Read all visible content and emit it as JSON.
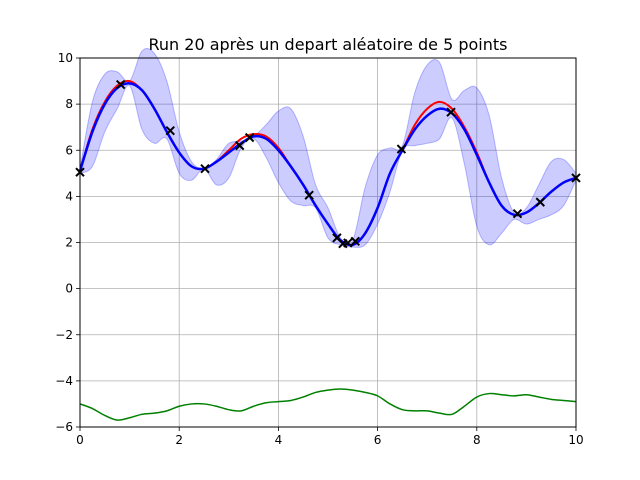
{
  "chart_data": {
    "type": "line",
    "title": "Run 20 après un depart aléatoire de 5 points",
    "xlabel": "",
    "ylabel": "",
    "xlim": [
      0,
      10
    ],
    "ylim": [
      -6,
      10
    ],
    "grid": true,
    "x_ticks": [
      0,
      2,
      4,
      6,
      8,
      10
    ],
    "y_ticks": [
      -6,
      -4,
      -2,
      0,
      2,
      4,
      6,
      8,
      10
    ],
    "x_tick_labels": [
      "0",
      "2",
      "4",
      "6",
      "8",
      "10"
    ],
    "y_tick_labels": [
      "−6",
      "−4",
      "−2",
      "0",
      "2",
      "4",
      "6",
      "8",
      "10"
    ],
    "x": [
      0,
      0.25,
      0.5,
      0.75,
      1.0,
      1.25,
      1.5,
      1.75,
      2.0,
      2.25,
      2.5,
      2.75,
      3.0,
      3.25,
      3.5,
      3.75,
      4.0,
      4.25,
      4.5,
      4.75,
      5.0,
      5.25,
      5.5,
      5.75,
      6.0,
      6.25,
      6.5,
      6.75,
      7.0,
      7.25,
      7.5,
      7.75,
      8.0,
      8.25,
      8.5,
      8.75,
      9.0,
      9.25,
      9.5,
      9.75,
      10.0
    ],
    "series": [
      {
        "role": "true-function",
        "color": "#ff0000",
        "values": [
          5.1,
          6.9,
          8.1,
          8.8,
          9.0,
          8.6,
          7.8,
          6.8,
          5.9,
          5.3,
          5.2,
          5.5,
          6.0,
          6.5,
          6.7,
          6.6,
          6.1,
          5.3,
          4.5,
          3.6,
          2.8,
          2.1,
          1.9,
          2.4,
          3.5,
          5.0,
          6.0,
          7.1,
          7.8,
          8.1,
          7.8,
          7.0,
          5.9,
          4.6,
          3.6,
          3.2,
          3.3,
          3.7,
          4.2,
          4.6,
          4.8
        ]
      },
      {
        "role": "gp-mean",
        "color": "#0000ff",
        "values": [
          5.1,
          6.8,
          8.0,
          8.7,
          8.9,
          8.6,
          7.8,
          6.8,
          5.9,
          5.3,
          5.2,
          5.5,
          5.9,
          6.3,
          6.6,
          6.5,
          6.0,
          5.3,
          4.5,
          3.6,
          2.8,
          2.1,
          1.9,
          2.4,
          3.5,
          5.0,
          6.0,
          6.9,
          7.5,
          7.8,
          7.6,
          6.9,
          5.8,
          4.6,
          3.6,
          3.2,
          3.3,
          3.7,
          4.2,
          4.6,
          4.8
        ]
      },
      {
        "role": "acquisition",
        "color": "#008000",
        "values": [
          -5.0,
          -5.2,
          -5.5,
          -5.7,
          -5.6,
          -5.45,
          -5.4,
          -5.3,
          -5.1,
          -5.0,
          -5.0,
          -5.1,
          -5.25,
          -5.3,
          -5.1,
          -4.95,
          -4.9,
          -4.85,
          -4.7,
          -4.5,
          -4.4,
          -4.35,
          -4.4,
          -4.5,
          -4.65,
          -5.0,
          -5.25,
          -5.3,
          -5.3,
          -5.4,
          -5.45,
          -5.1,
          -4.7,
          -4.55,
          -4.6,
          -4.65,
          -4.6,
          -4.7,
          -4.8,
          -4.85,
          -4.9
        ]
      }
    ],
    "confidence_band": {
      "color": "#0000ff",
      "opacity": 0.2,
      "upper": [
        5.2,
        8.1,
        9.3,
        9.4,
        9.0,
        10.3,
        10.2,
        9.0,
        6.8,
        5.5,
        5.2,
        5.6,
        6.3,
        6.4,
        6.6,
        7.1,
        7.7,
        7.8,
        6.6,
        4.5,
        3.5,
        2.2,
        2.1,
        4.4,
        5.8,
        6.1,
        6.2,
        8.5,
        9.7,
        9.8,
        8.2,
        8.6,
        8.7,
        7.5,
        4.8,
        3.3,
        3.5,
        4.5,
        5.5,
        5.6,
        5.0
      ],
      "lower": [
        5.0,
        5.3,
        6.8,
        7.8,
        8.8,
        6.9,
        6.3,
        6.5,
        5.0,
        4.7,
        5.2,
        4.5,
        4.8,
        6.1,
        6.5,
        5.7,
        4.6,
        3.8,
        3.6,
        3.5,
        2.2,
        1.9,
        1.8,
        1.9,
        2.8,
        4.2,
        6.0,
        6.2,
        6.3,
        6.5,
        7.4,
        5.4,
        2.7,
        1.9,
        2.4,
        3.0,
        2.8,
        3.0,
        3.2,
        3.6,
        4.7
      ]
    },
    "observations": {
      "marker": "x",
      "color": "#000000",
      "x": [
        0.0,
        0.82,
        1.82,
        2.52,
        3.22,
        3.42,
        4.62,
        5.18,
        5.3,
        5.4,
        5.55,
        6.48,
        7.48,
        8.82,
        9.28,
        10.0
      ],
      "y": [
        5.05,
        8.85,
        6.85,
        5.2,
        6.2,
        6.55,
        4.05,
        2.2,
        1.95,
        1.98,
        2.05,
        6.05,
        7.65,
        3.25,
        3.75,
        4.8
      ]
    }
  }
}
